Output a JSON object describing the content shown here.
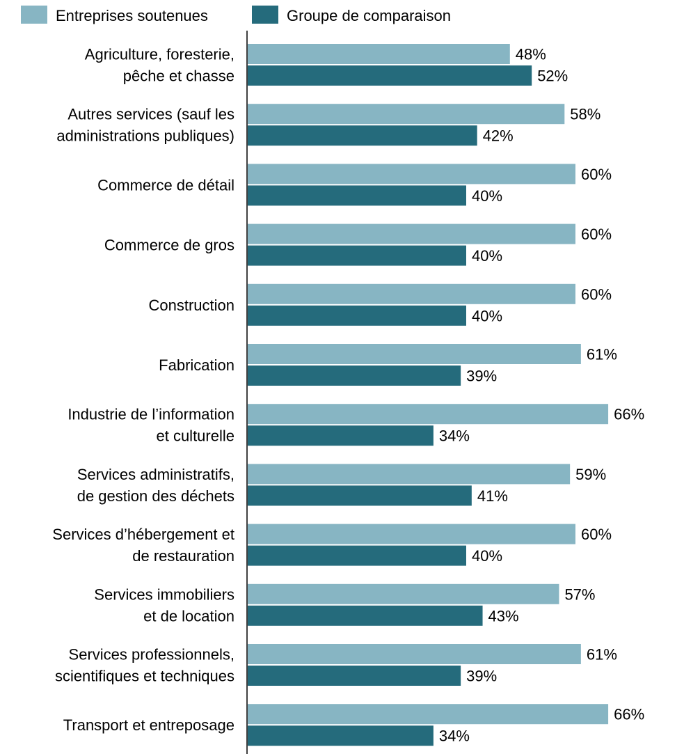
{
  "chart_data": {
    "type": "bar",
    "orientation": "horizontal",
    "categories": [
      [
        "Agriculture, foresterie,",
        "pêche et chasse"
      ],
      [
        "Autres services (sauf les",
        "administrations publiques)"
      ],
      [
        "Commerce de détail"
      ],
      [
        "Commerce de gros"
      ],
      [
        "Construction"
      ],
      [
        "Fabrication"
      ],
      [
        "Industrie de l’information",
        "et culturelle"
      ],
      [
        "Services administratifs,",
        "de gestion des déchets "
      ],
      [
        "Services d’hébergement et",
        "de restauration"
      ],
      [
        "Services immobiliers ",
        "et de location"
      ],
      [
        "Services professionnels,",
        "scientifiques et techniques"
      ],
      [
        "Transport et entreposage"
      ]
    ],
    "series": [
      {
        "name": "Entreprises soutenues",
        "color": "#87b5c3",
        "values": [
          48,
          58,
          60,
          60,
          60,
          61,
          66,
          59,
          60,
          57,
          61,
          66
        ],
        "labels": [
          "48%",
          "58%",
          "60%",
          "60%",
          "60%",
          "61%",
          "66%",
          "59%",
          "60%",
          "57%",
          "61%",
          "66%"
        ]
      },
      {
        "name": "Groupe de comparaison",
        "color": "#256b7c",
        "values": [
          52,
          42,
          40,
          40,
          40,
          39,
          34,
          41,
          40,
          43,
          39,
          34
        ],
        "labels": [
          "52%",
          "42%",
          "40%",
          "40%",
          "40%",
          "39%",
          "34%",
          "41%",
          "40%",
          "43%",
          "39%",
          "34%"
        ]
      }
    ],
    "legend_position": "top-left",
    "grid": false,
    "xlim": [
      0,
      70
    ],
    "axis_color": "#000000"
  }
}
